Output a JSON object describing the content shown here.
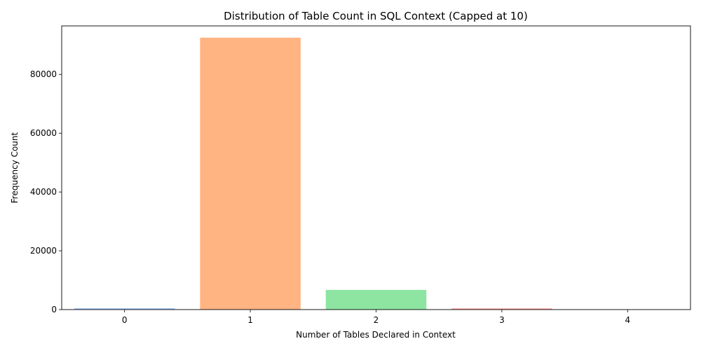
{
  "chart_data": {
    "type": "bar",
    "title": "Distribution of Table Count in SQL Context (Capped at 10)",
    "xlabel": "Number of Tables Declared in Context",
    "ylabel": "Frequency Count",
    "categories": [
      "0",
      "1",
      "2",
      "3",
      "4"
    ],
    "values": [
      450,
      92500,
      6700,
      400,
      40
    ],
    "colors": [
      "#a1c9f4",
      "#ffb482",
      "#8de5a1",
      "#ff9f9b",
      "#d0bbff"
    ],
    "ylim": [
      0,
      96500
    ],
    "yticks": [
      0,
      20000,
      40000,
      60000,
      80000
    ],
    "grid": false,
    "legend": "none"
  }
}
